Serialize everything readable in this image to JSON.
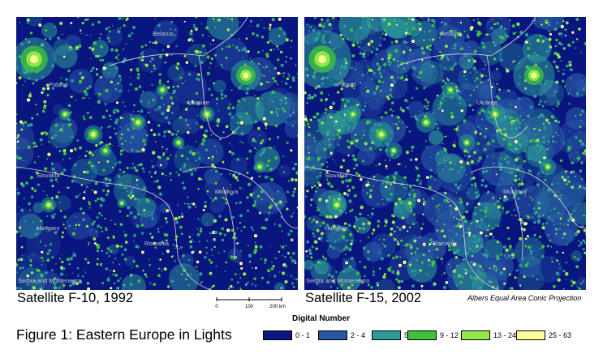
{
  "maps": [
    {
      "caption": "Satellite F-10, 1992",
      "labels": {
        "belarus": "Belarus",
        "poland": "Poland",
        "ukraine": "Ukraine",
        "slovakia": "Slovakia",
        "moldova": "Moldova",
        "hungary": "Hungary",
        "romania": "Romania",
        "serbia": "Serbia and Montenegro"
      }
    },
    {
      "caption": "Satellite F-15, 2002",
      "labels": {
        "belarus": "Belarus",
        "poland": "Poland",
        "ukraine": "Ukraine",
        "slovakia": "Slovakia",
        "moldova": "Moldova",
        "hungary": "Hungary",
        "romania": "Romania",
        "serbia": "Serbia and Montenegro"
      }
    }
  ],
  "projection": "Albers Equal Area Conic Projection",
  "scale": {
    "ticks": [
      "0",
      "100",
      "200 km"
    ]
  },
  "figure_title": "Figure 1: Eastern Europe in Lights",
  "legend": {
    "title": "Digital Number",
    "items": [
      {
        "label": "0 - 1",
        "color": "#0a1680"
      },
      {
        "label": "2 - 4",
        "color": "#2756a3"
      },
      {
        "label": "5 - 8",
        "color": "#2c9c98"
      },
      {
        "label": "9 - 12",
        "color": "#3ec23e"
      },
      {
        "label": "13 - 24",
        "color": "#94e84a"
      },
      {
        "label": "25 - 63",
        "color": "#ffff9a"
      }
    ]
  }
}
